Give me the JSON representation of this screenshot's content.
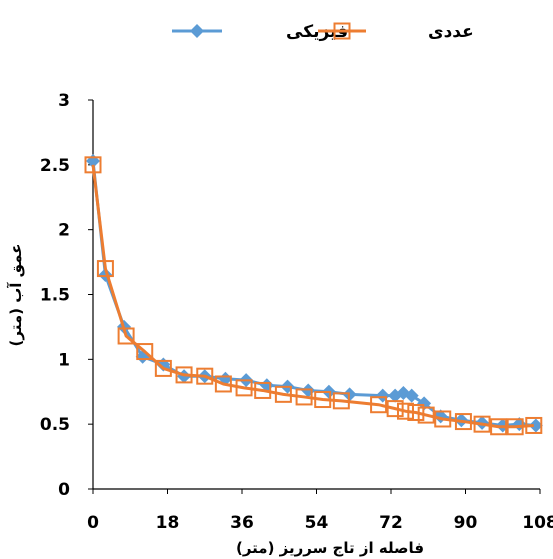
{
  "chart_data": {
    "type": "line",
    "xlabel": "فاصله از تاج سرریز (متر)",
    "ylabel": "عمق آب (متر)",
    "xlim": [
      0,
      108
    ],
    "ylim": [
      0,
      3
    ],
    "x_ticks": [
      "0",
      "18",
      "36",
      "54",
      "72",
      "90",
      "108"
    ],
    "y_ticks": [
      "0",
      "0.5",
      "1",
      "1.5",
      "2",
      "2.5",
      "3"
    ],
    "grid": false,
    "legend_position": "top",
    "series": [
      {
        "name": "فیزیکی",
        "color": "#5B9BD5",
        "marker": "diamond",
        "points": [
          [
            0,
            2.53
          ],
          [
            3,
            1.65
          ],
          [
            7.5,
            1.25
          ],
          [
            12,
            1.02
          ],
          [
            17,
            0.96
          ],
          [
            22,
            0.87
          ],
          [
            27,
            0.87
          ],
          [
            32,
            0.85
          ],
          [
            37,
            0.84
          ],
          [
            42,
            0.8
          ],
          [
            47,
            0.79
          ],
          [
            52,
            0.76
          ],
          [
            57,
            0.75
          ],
          [
            62,
            0.73
          ],
          [
            70,
            0.72
          ],
          [
            73,
            0.72
          ],
          [
            75,
            0.74
          ],
          [
            77,
            0.72
          ],
          [
            80,
            0.66
          ],
          [
            84,
            0.56
          ],
          [
            89,
            0.53
          ],
          [
            94,
            0.51
          ],
          [
            99,
            0.49
          ],
          [
            103,
            0.5
          ],
          [
            107,
            0.49
          ]
        ]
      },
      {
        "name": "عددی",
        "color": "#ED7D31",
        "marker": "square",
        "points": [
          [
            0,
            2.5
          ],
          [
            3,
            1.7
          ],
          [
            8,
            1.18
          ],
          [
            12.5,
            1.06
          ],
          [
            17,
            0.93
          ],
          [
            22,
            0.88
          ],
          [
            27,
            0.87
          ],
          [
            31.5,
            0.81
          ],
          [
            36.5,
            0.78
          ],
          [
            41,
            0.76
          ],
          [
            46,
            0.73
          ],
          [
            51,
            0.71
          ],
          [
            55.5,
            0.69
          ],
          [
            60,
            0.68
          ],
          [
            69,
            0.65
          ],
          [
            73,
            0.62
          ],
          [
            75.5,
            0.6
          ],
          [
            78,
            0.59
          ],
          [
            80.5,
            0.57
          ],
          [
            84.5,
            0.54
          ],
          [
            89.5,
            0.52
          ],
          [
            94,
            0.5
          ],
          [
            98,
            0.48
          ],
          [
            102,
            0.48
          ],
          [
            106.5,
            0.49
          ]
        ]
      }
    ]
  }
}
